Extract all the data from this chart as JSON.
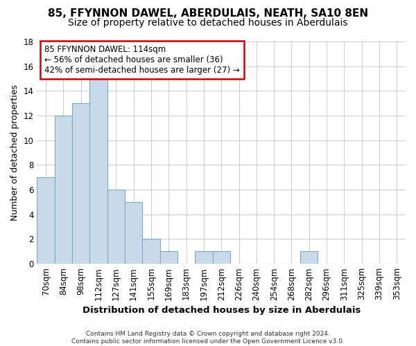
{
  "title": "85, FFYNNON DAWEL, ABERDULAIS, NEATH, SA10 8EN",
  "subtitle": "Size of property relative to detached houses in Aberdulais",
  "xlabel": "Distribution of detached houses by size in Aberdulais",
  "ylabel": "Number of detached properties",
  "bar_color": "#c8daea",
  "bar_edge_color": "#7aaac8",
  "categories": [
    "70sqm",
    "84sqm",
    "98sqm",
    "112sqm",
    "127sqm",
    "141sqm",
    "155sqm",
    "169sqm",
    "183sqm",
    "197sqm",
    "212sqm",
    "226sqm",
    "240sqm",
    "254sqm",
    "268sqm",
    "282sqm",
    "296sqm",
    "311sqm",
    "325sqm",
    "339sqm",
    "353sqm"
  ],
  "values": [
    7,
    12,
    13,
    15,
    6,
    5,
    2,
    1,
    0,
    1,
    1,
    0,
    0,
    0,
    0,
    1,
    0,
    0,
    0,
    0,
    0
  ],
  "ylim": [
    0,
    18
  ],
  "yticks": [
    0,
    2,
    4,
    6,
    8,
    10,
    12,
    14,
    16,
    18
  ],
  "annotation_line1": "85 FFYNNON DAWEL: 114sqm",
  "annotation_line2": "← 56% of detached houses are smaller (36)",
  "annotation_line3": "42% of semi-detached houses are larger (27) →",
  "annotation_box_color": "white",
  "annotation_box_edge": "#cc0000",
  "footer": "Contains HM Land Registry data © Crown copyright and database right 2024.\nContains public sector information licensed under the Open Government Licence v3.0.",
  "bg_color": "#ffffff",
  "plot_bg_color": "#ffffff",
  "grid_color": "#cccccc",
  "title_fontsize": 11,
  "subtitle_fontsize": 10,
  "ylabel_fontsize": 9,
  "xlabel_fontsize": 9.5,
  "tick_fontsize": 8.5,
  "annotation_fontsize": 8.5,
  "footer_fontsize": 6.5
}
